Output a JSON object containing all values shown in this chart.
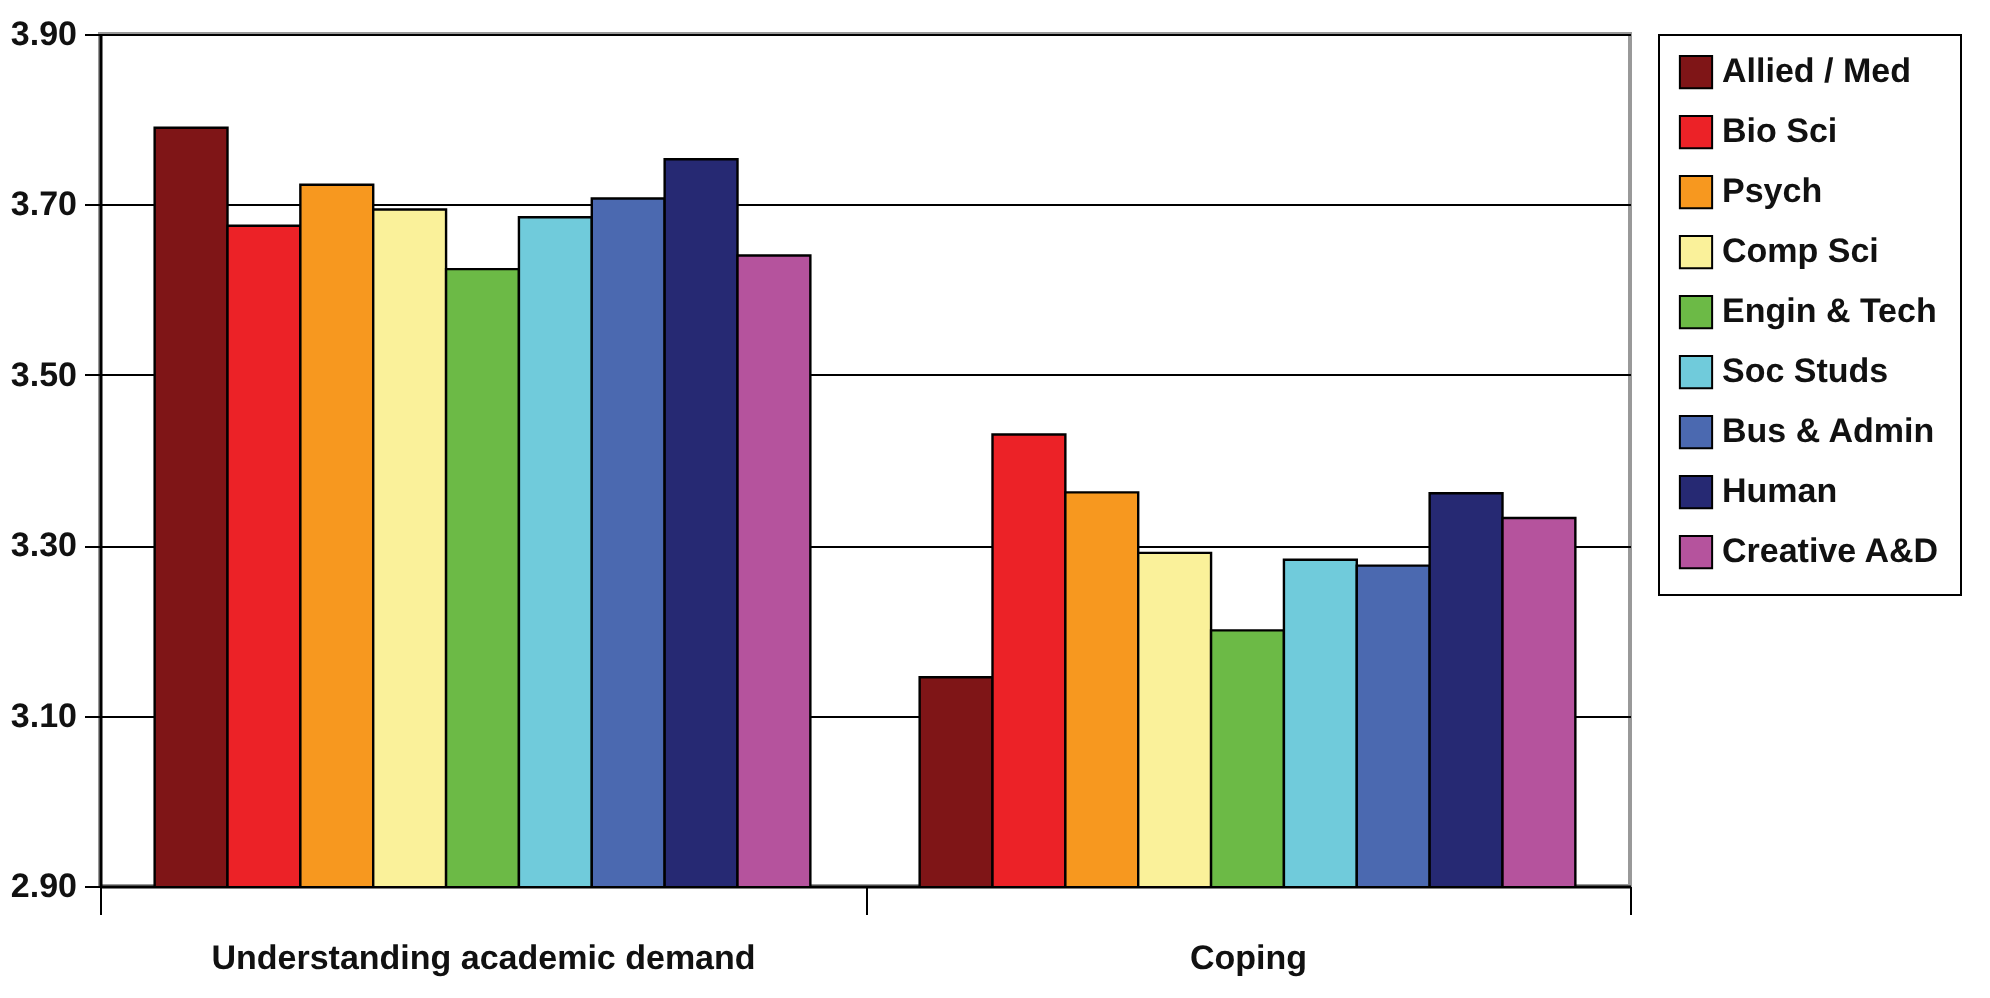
{
  "chart_data": {
    "type": "bar",
    "categories": [
      "Understanding academic demand",
      "Coping"
    ],
    "series": [
      {
        "name": "Allied / Med",
        "color": "#7f1517",
        "values": [
          3.79,
          3.145
        ]
      },
      {
        "name": "Bio Sci",
        "color": "#ec2227",
        "values": [
          3.675,
          3.43
        ]
      },
      {
        "name": "Psych",
        "color": "#f7981f",
        "values": [
          3.723,
          3.362
        ]
      },
      {
        "name": "Comp Sci",
        "color": "#faf19a",
        "values": [
          3.694,
          3.291
        ]
      },
      {
        "name": "Engin & Tech",
        "color": "#6cba46",
        "values": [
          3.624,
          3.2
        ]
      },
      {
        "name": "Soc Studs",
        "color": "#70cbdb",
        "values": [
          3.685,
          3.283
        ]
      },
      {
        "name": "Bus & Admin",
        "color": "#4b69b0",
        "values": [
          3.707,
          3.276
        ]
      },
      {
        "name": "Human",
        "color": "#262973",
        "values": [
          3.753,
          3.361
        ]
      },
      {
        "name": "Creative A&D",
        "color": "#b5539d",
        "values": [
          3.64,
          3.332
        ]
      }
    ],
    "ylim": [
      2.9,
      3.9
    ],
    "yticks": [
      {
        "value": 2.9,
        "label": "2.90"
      },
      {
        "value": 3.1,
        "label": "3.10"
      },
      {
        "value": 3.3,
        "label": "3.30"
      },
      {
        "value": 3.5,
        "label": "3.50"
      },
      {
        "value": 3.7,
        "label": "3.70"
      },
      {
        "value": 3.9,
        "label": "3.90"
      }
    ],
    "grid": "y",
    "legend": "right"
  }
}
